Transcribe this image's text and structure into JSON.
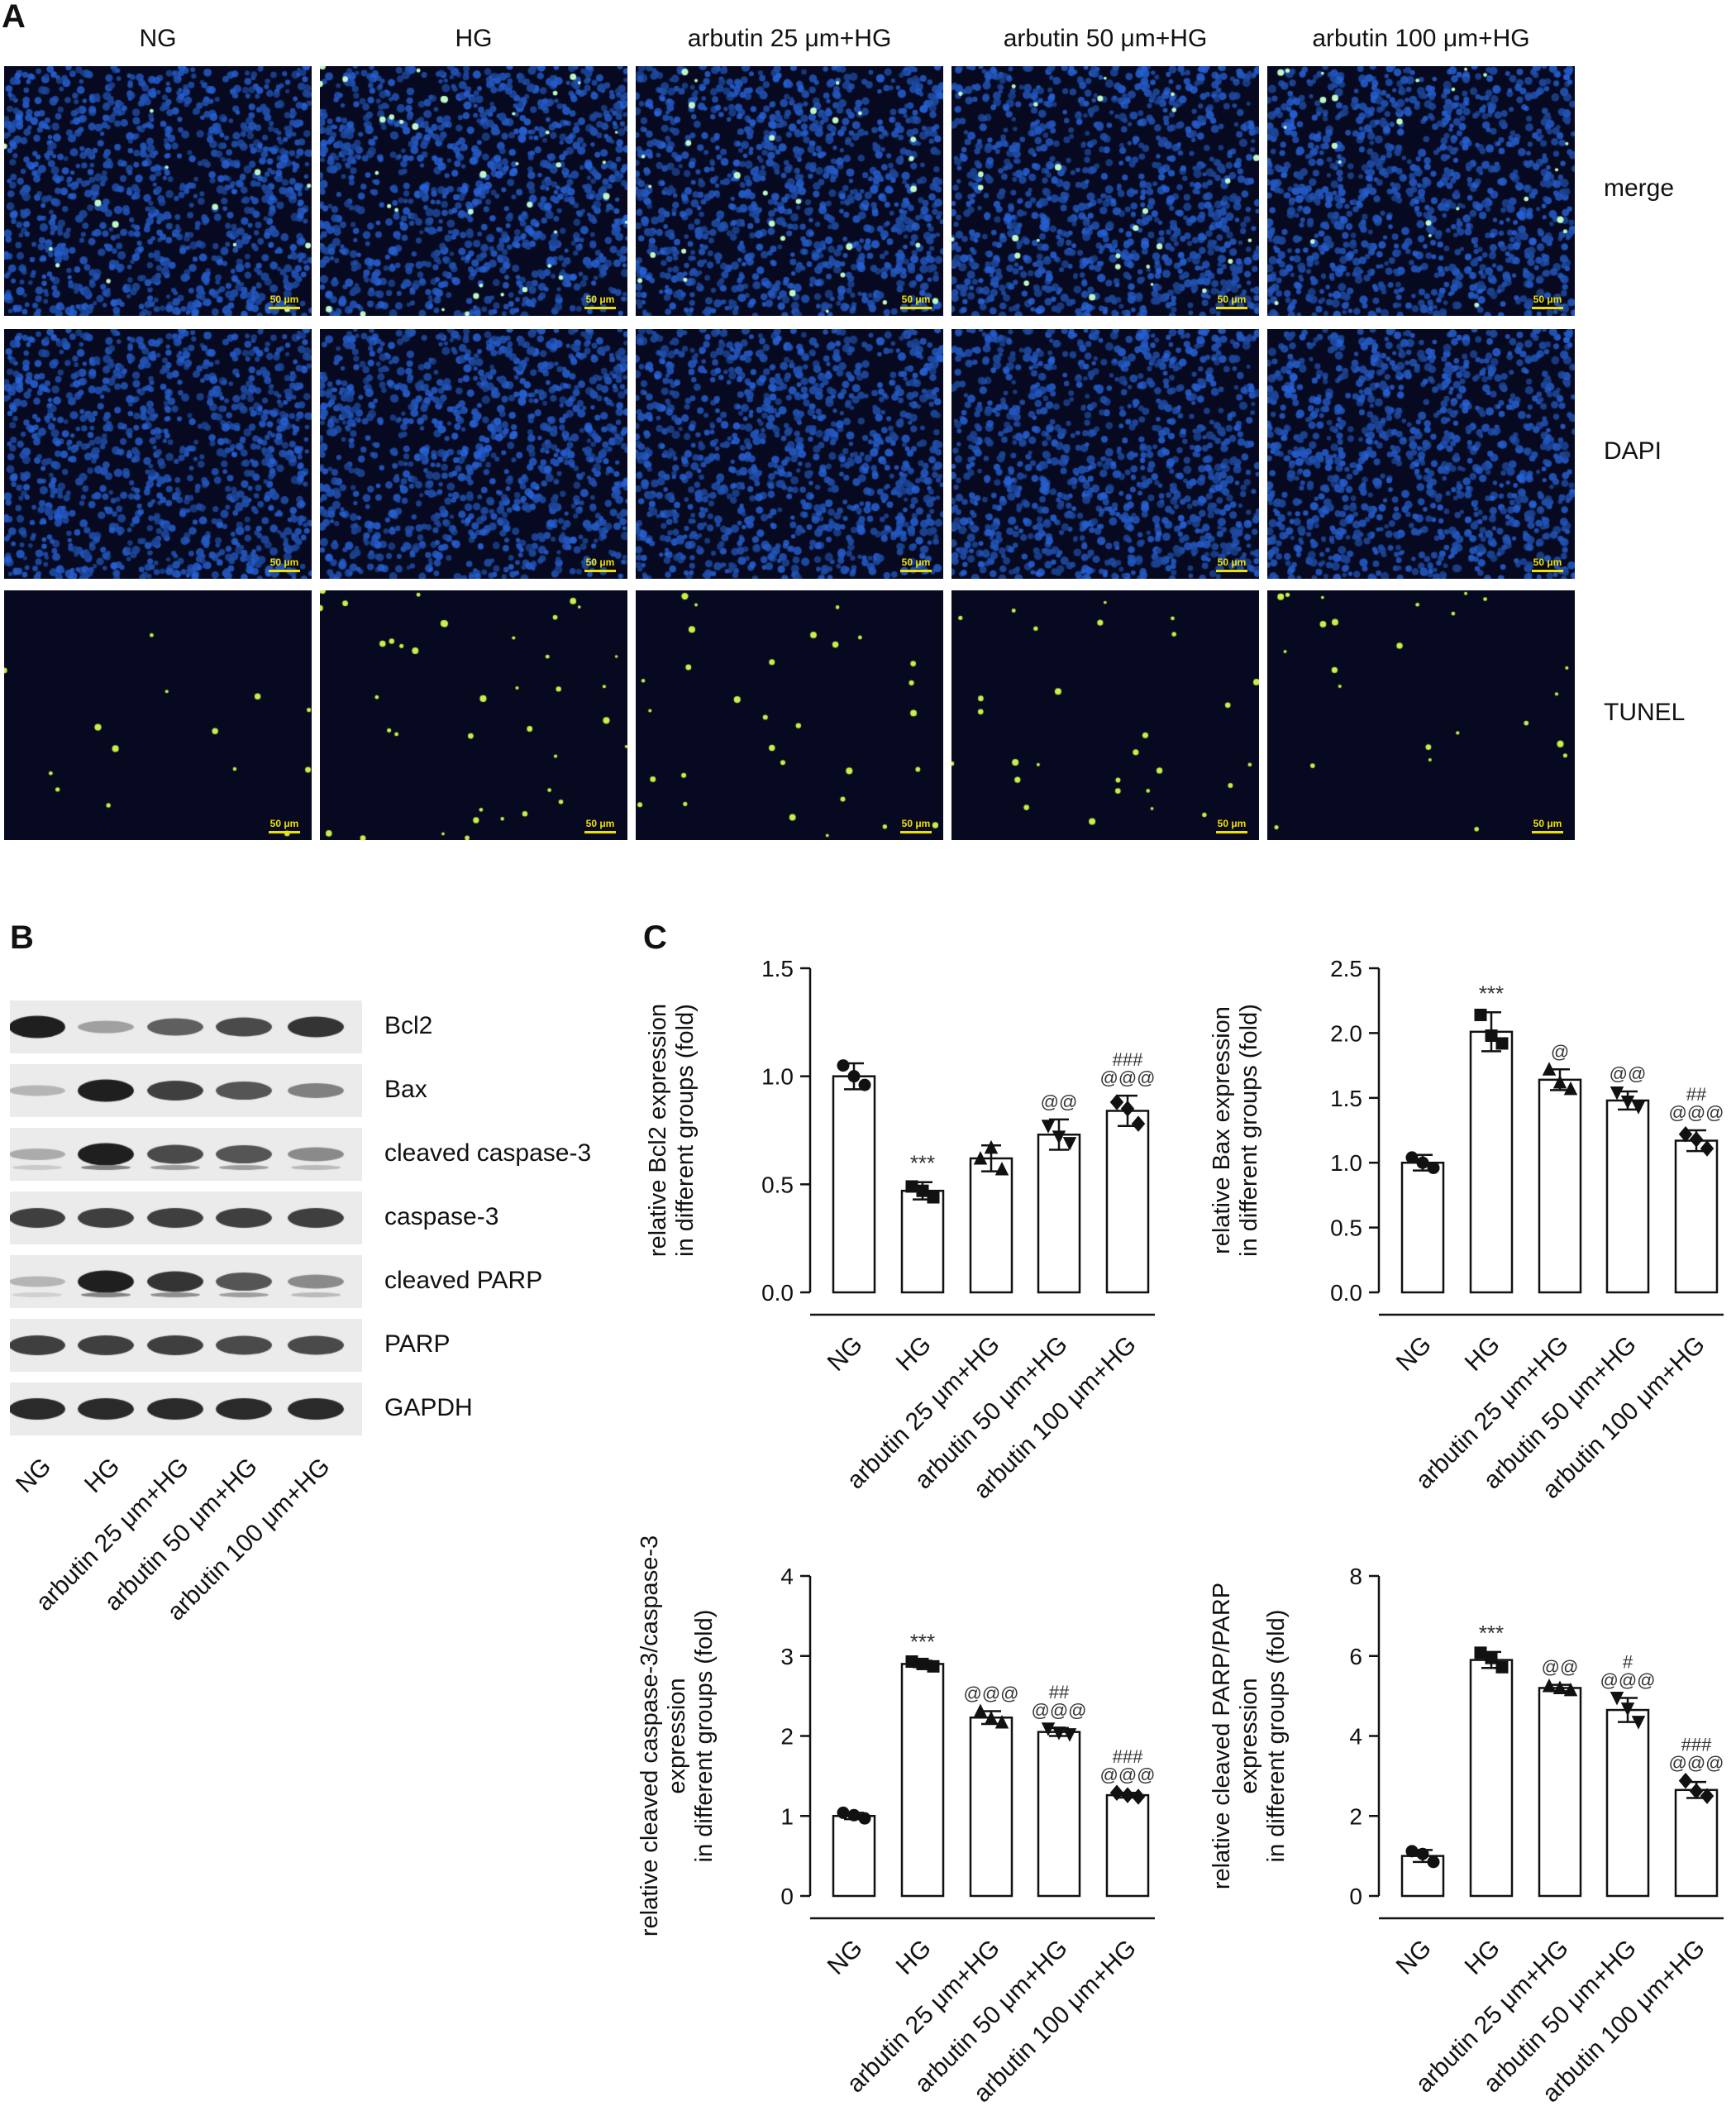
{
  "panel_a": {
    "letter": "A",
    "columns": [
      "NG",
      "HG",
      "arbutin 25 μm+HG",
      "arbutin 50 μm+HG",
      "arbutin 100 μm+HG"
    ],
    "rows": [
      {
        "label": "merge",
        "type": "merge"
      },
      {
        "label": "DAPI",
        "type": "dapi"
      },
      {
        "label": "TUNEL",
        "type": "tunel"
      }
    ],
    "scale_label": "50 μm",
    "colors": {
      "background": "#06091f",
      "dapi": "#2a55b8",
      "tunel": "#c8f04a",
      "scale": "#f0e000"
    }
  },
  "panel_b": {
    "letter": "B",
    "bands": [
      "Bcl2",
      "Bax",
      "cleaved caspase-3",
      "caspase-3",
      "cleaved PARP",
      "PARP",
      "GAPDH"
    ],
    "lanes": [
      "NG",
      "HG",
      "arbutin 25 μm+HG",
      "arbutin 50 μm+HG",
      "arbutin 100 μm+HG"
    ],
    "intensities": [
      [
        0.95,
        0.35,
        0.65,
        0.75,
        0.85
      ],
      [
        0.25,
        0.95,
        0.8,
        0.7,
        0.5
      ],
      [
        0.3,
        0.95,
        0.75,
        0.7,
        0.45
      ],
      [
        0.8,
        0.8,
        0.8,
        0.8,
        0.8
      ],
      [
        0.25,
        0.95,
        0.85,
        0.7,
        0.45
      ],
      [
        0.8,
        0.8,
        0.8,
        0.75,
        0.75
      ],
      [
        0.9,
        0.9,
        0.9,
        0.9,
        0.9
      ]
    ]
  },
  "panel_c": {
    "letter": "C"
  },
  "chart_data": [
    {
      "type": "bar",
      "categories": [
        "NG",
        "HG",
        "arbutin 25 μm+HG",
        "arbutin 50 μm+HG",
        "arbutin 100 μm+HG"
      ],
      "values": [
        1.0,
        0.47,
        0.62,
        0.73,
        0.84
      ],
      "errors": [
        0.06,
        0.04,
        0.06,
        0.07,
        0.07
      ],
      "points": [
        [
          1.05,
          1.0,
          0.96
        ],
        [
          0.49,
          0.47,
          0.44
        ],
        [
          0.62,
          0.67,
          0.57
        ],
        [
          0.77,
          0.72,
          0.69
        ],
        [
          0.88,
          0.85,
          0.78
        ]
      ],
      "markers": [
        "circle",
        "square",
        "triangle-up",
        "triangle-down",
        "diamond"
      ],
      "annotations": [
        [],
        [
          "***"
        ],
        [],
        [
          "@@"
        ],
        [
          "###",
          "@@@"
        ]
      ],
      "ylabel": [
        "relative Bcl2 expression",
        "in different groups (fold)"
      ],
      "ylim": [
        0,
        1.5
      ],
      "yticks": [
        "0.0",
        "0.5",
        "1.0",
        "1.5"
      ]
    },
    {
      "type": "bar",
      "categories": [
        "NG",
        "HG",
        "arbutin 25 μm+HG",
        "arbutin 50 μm+HG",
        "arbutin 100 μm+HG"
      ],
      "values": [
        1.0,
        2.01,
        1.64,
        1.48,
        1.17
      ],
      "errors": [
        0.06,
        0.15,
        0.08,
        0.07,
        0.08
      ],
      "points": [
        [
          1.04,
          1.0,
          0.96
        ],
        [
          2.14,
          1.98,
          1.92
        ],
        [
          1.72,
          1.62,
          1.57
        ],
        [
          1.54,
          1.47,
          1.43
        ],
        [
          1.22,
          1.18,
          1.11
        ]
      ],
      "markers": [
        "circle",
        "square",
        "triangle-up",
        "triangle-down",
        "diamond"
      ],
      "annotations": [
        [],
        [
          "***"
        ],
        [
          "@"
        ],
        [
          "@@"
        ],
        [
          "##",
          "@@@"
        ]
      ],
      "ylabel": [
        "relative Bax expression",
        "in different groups (fold)"
      ],
      "ylim": [
        0,
        2.5
      ],
      "yticks": [
        "0.0",
        "0.5",
        "1.0",
        "1.5",
        "2.0",
        "2.5"
      ]
    },
    {
      "type": "bar",
      "categories": [
        "NG",
        "HG",
        "arbutin 25 μm+HG",
        "arbutin 50 μm+HG",
        "arbutin 100 μm+HG"
      ],
      "values": [
        1.0,
        2.9,
        2.23,
        2.05,
        1.26
      ],
      "errors": [
        0.04,
        0.04,
        0.08,
        0.05,
        0.03
      ],
      "points": [
        [
          1.04,
          1.01,
          0.97
        ],
        [
          2.93,
          2.9,
          2.87
        ],
        [
          2.31,
          2.22,
          2.17
        ],
        [
          2.09,
          2.04,
          2.02
        ],
        [
          1.29,
          1.26,
          1.24
        ]
      ],
      "markers": [
        "circle",
        "square",
        "triangle-up",
        "triangle-down",
        "diamond"
      ],
      "annotations": [
        [],
        [
          "***"
        ],
        [
          "@@@"
        ],
        [
          "##",
          "@@@"
        ],
        [
          "###",
          "@@@"
        ]
      ],
      "ylabel": [
        "relative cleaved caspase-3/caspase-3",
        "expression",
        "in different groups (fold)"
      ],
      "ylim": [
        0,
        4
      ],
      "yticks": [
        "0",
        "1",
        "2",
        "3",
        "4"
      ]
    },
    {
      "type": "bar",
      "categories": [
        "NG",
        "HG",
        "arbutin 25 μm+HG",
        "arbutin 50 μm+HG",
        "arbutin 100 μm+HG"
      ],
      "values": [
        1.0,
        5.9,
        5.2,
        4.65,
        2.65
      ],
      "errors": [
        0.15,
        0.2,
        0.08,
        0.3,
        0.2
      ],
      "points": [
        [
          1.12,
          1.05,
          0.85
        ],
        [
          6.08,
          5.95,
          5.72
        ],
        [
          5.25,
          5.2,
          5.15
        ],
        [
          4.95,
          4.68,
          4.35
        ],
        [
          2.88,
          2.62,
          2.5
        ]
      ],
      "markers": [
        "circle",
        "square",
        "triangle-up",
        "triangle-down",
        "diamond"
      ],
      "annotations": [
        [],
        [
          "***"
        ],
        [
          "@@"
        ],
        [
          "#",
          "@@@"
        ],
        [
          "###",
          "@@@"
        ]
      ],
      "ylabel": [
        "relative cleaved PARP/PARP",
        "expression",
        "in different groups (fold)"
      ],
      "ylim": [
        0,
        8
      ],
      "yticks": [
        "0",
        "2",
        "4",
        "6",
        "8"
      ]
    }
  ]
}
